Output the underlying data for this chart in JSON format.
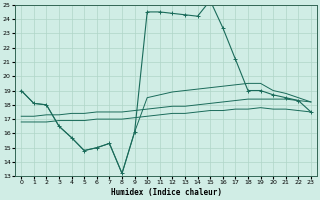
{
  "xlabel": "Humidex (Indice chaleur)",
  "xlim": [
    -0.5,
    23.5
  ],
  "ylim": [
    13,
    25
  ],
  "xticks": [
    0,
    1,
    2,
    3,
    4,
    5,
    6,
    7,
    8,
    9,
    10,
    11,
    12,
    13,
    14,
    15,
    16,
    17,
    18,
    19,
    20,
    21,
    22,
    23
  ],
  "yticks": [
    13,
    14,
    15,
    16,
    17,
    18,
    19,
    20,
    21,
    22,
    23,
    24,
    25
  ],
  "background_color": "#d0ede5",
  "grid_color": "#b0d5c8",
  "line_color": "#1a6b5a",
  "lines": [
    {
      "x": [
        0,
        1,
        2,
        3,
        4,
        5,
        6,
        7,
        8,
        9,
        10,
        11,
        12,
        13,
        14,
        15,
        16,
        17,
        18,
        19,
        20,
        21,
        22,
        23
      ],
      "y": [
        19,
        18.1,
        18,
        16.5,
        15.7,
        14.8,
        15.0,
        15.3,
        13.2,
        16.1,
        24.5,
        24.5,
        24.4,
        24.3,
        24.2,
        25.3,
        23.4,
        21.2,
        19.0,
        19.0,
        18.7,
        18.5,
        18.3,
        17.5
      ],
      "marker": "+"
    },
    {
      "x": [
        0,
        1,
        2,
        3,
        4,
        5,
        6,
        7,
        8,
        9,
        10,
        11,
        12,
        13,
        14,
        15,
        16,
        17,
        18,
        19,
        20,
        21,
        22,
        23
      ],
      "y": [
        19,
        18.1,
        18,
        16.5,
        15.7,
        14.8,
        15.0,
        15.3,
        13.2,
        16.1,
        18.5,
        18.7,
        18.9,
        19.0,
        19.1,
        19.2,
        19.3,
        19.4,
        19.5,
        19.5,
        19.0,
        18.8,
        18.5,
        18.2
      ],
      "marker": null
    },
    {
      "x": [
        0,
        1,
        2,
        3,
        4,
        5,
        6,
        7,
        8,
        9,
        10,
        11,
        12,
        13,
        14,
        15,
        16,
        17,
        18,
        19,
        20,
        21,
        22,
        23
      ],
      "y": [
        17.2,
        17.2,
        17.3,
        17.3,
        17.4,
        17.4,
        17.5,
        17.5,
        17.5,
        17.6,
        17.7,
        17.8,
        17.9,
        17.9,
        18.0,
        18.1,
        18.2,
        18.3,
        18.4,
        18.4,
        18.4,
        18.4,
        18.3,
        18.2
      ],
      "marker": null
    },
    {
      "x": [
        0,
        1,
        2,
        3,
        4,
        5,
        6,
        7,
        8,
        9,
        10,
        11,
        12,
        13,
        14,
        15,
        16,
        17,
        18,
        19,
        20,
        21,
        22,
        23
      ],
      "y": [
        16.8,
        16.8,
        16.8,
        16.9,
        16.9,
        16.9,
        17.0,
        17.0,
        17.0,
        17.1,
        17.2,
        17.3,
        17.4,
        17.4,
        17.5,
        17.6,
        17.6,
        17.7,
        17.7,
        17.8,
        17.7,
        17.7,
        17.6,
        17.5
      ],
      "marker": null
    }
  ]
}
